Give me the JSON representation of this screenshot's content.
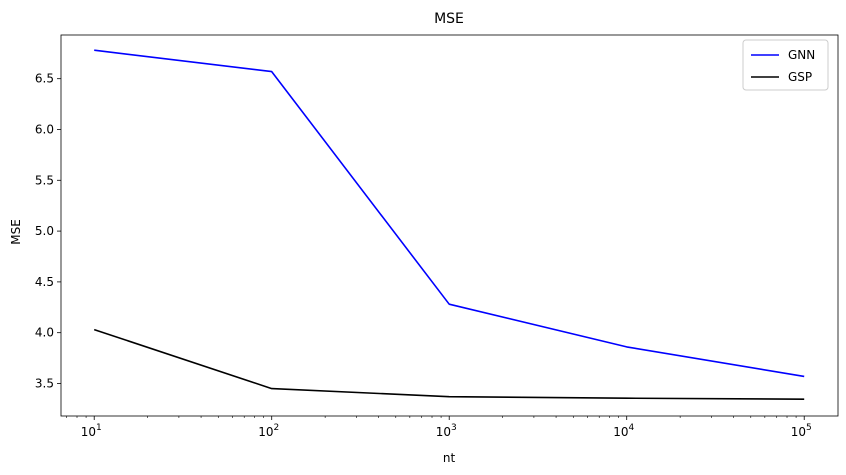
{
  "chart_data": {
    "type": "line",
    "title": "MSE",
    "xlabel": "nt",
    "ylabel": "MSE",
    "xscale": "log",
    "x": [
      10,
      100,
      1000,
      10000,
      100000
    ],
    "xlim": [
      6.5,
      155000
    ],
    "ylim": [
      3.18,
      6.93
    ],
    "xticks": [
      {
        "value": 10,
        "base": "10",
        "exp": "1"
      },
      {
        "value": 100,
        "base": "10",
        "exp": "2"
      },
      {
        "value": 1000,
        "base": "10",
        "exp": "3"
      },
      {
        "value": 10000,
        "base": "10",
        "exp": "4"
      },
      {
        "value": 100000,
        "base": "10",
        "exp": "5"
      }
    ],
    "yticks": [
      3.5,
      4.0,
      4.5,
      5.0,
      5.5,
      6.0,
      6.5
    ],
    "ytick_labels": [
      "3.5",
      "4.0",
      "4.5",
      "5.0",
      "5.5",
      "6.0",
      "6.5"
    ],
    "series": [
      {
        "name": "GNN",
        "color": "#0000ff",
        "values": [
          6.78,
          6.57,
          4.28,
          3.86,
          3.57
        ]
      },
      {
        "name": "GSP",
        "color": "#000000",
        "values": [
          4.03,
          3.45,
          3.37,
          3.355,
          3.345
        ]
      }
    ],
    "legend": "top-right",
    "grid": false
  }
}
